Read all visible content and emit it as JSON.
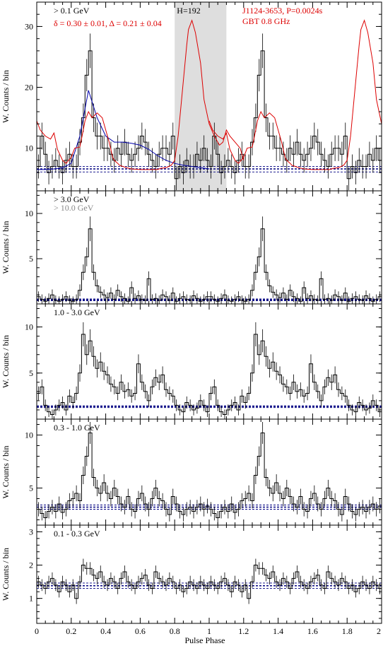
{
  "chart_data": [
    {
      "type": "line",
      "panel_label": "> 0.1 GeV",
      "fit_label": "δ = 0.30 ± 0.01, Δ = 0.21 ± 0.04",
      "h_label": "H=192",
      "radio_label": "J1124-3653, P=0.0024s",
      "radio_freq": "GBT 0.8 GHz",
      "ylabel": "W. Counts / bin",
      "xlim": [
        0,
        2
      ],
      "ylim": [
        3,
        34
      ],
      "yticks": [
        10,
        20,
        30
      ],
      "baseline": [
        6.1,
        6.6,
        7.0
      ],
      "shade": [
        0.8,
        1.1
      ],
      "series": [
        {
          "x": [
            0.0,
            0.02,
            0.04,
            0.06,
            0.08,
            0.1,
            0.12,
            0.14,
            0.16,
            0.18,
            0.2,
            0.22,
            0.24,
            0.26,
            0.28,
            0.3,
            0.32,
            0.34,
            0.36,
            0.38,
            0.4,
            0.42,
            0.44,
            0.46,
            0.48,
            0.5,
            0.52,
            0.54,
            0.56,
            0.58,
            0.6,
            0.62,
            0.64,
            0.66,
            0.68,
            0.7,
            0.72,
            0.74,
            0.76,
            0.78,
            0.8,
            0.82,
            0.84,
            0.86,
            0.88,
            0.9,
            0.92,
            0.94,
            0.96,
            0.98
          ],
          "values": [
            7,
            12,
            9,
            6,
            7,
            8,
            7,
            6,
            8,
            9,
            7,
            7,
            11,
            15,
            22,
            26,
            15,
            12,
            12,
            10,
            10,
            9,
            8,
            10,
            9,
            11,
            9,
            8,
            9,
            10,
            12,
            11,
            9,
            8,
            7,
            9,
            10,
            10,
            9,
            12,
            5,
            7,
            6,
            8,
            7,
            7,
            9,
            8,
            10,
            8
          ]
        },
        {
          "x": [
            0.0,
            0.05,
            0.1,
            0.15,
            0.2,
            0.25,
            0.3,
            0.35,
            0.4,
            0.45,
            0.5,
            0.55,
            0.6,
            0.65,
            0.7,
            0.75,
            0.8,
            0.85,
            0.9,
            0.95,
            1.0
          ],
          "values": [
            6.5,
            6.5,
            6.6,
            6.8,
            7.5,
            12,
            19.5,
            15,
            12,
            11,
            11,
            10.8,
            10.5,
            9.8,
            8.8,
            8.0,
            7.5,
            7.2,
            7.0,
            6.8,
            6.6
          ]
        },
        {
          "x": [
            0.0,
            0.02,
            0.05,
            0.08,
            0.1,
            0.12,
            0.15,
            0.17,
            0.2,
            0.22,
            0.25,
            0.27,
            0.28,
            0.3,
            0.32,
            0.35,
            0.38,
            0.4,
            0.42,
            0.44,
            0.45,
            0.47,
            0.48,
            0.5,
            0.52,
            0.55,
            0.6,
            0.65,
            0.7,
            0.72,
            0.75,
            0.78,
            0.8,
            0.82,
            0.85,
            0.87,
            0.88,
            0.9,
            0.92,
            0.95,
            0.97,
            1.0,
            1.03,
            1.06,
            1.08,
            1.1,
            1.12,
            1.15,
            1.18,
            1.2
          ],
          "values": [
            14.5,
            13,
            12,
            11.5,
            12.5,
            9.8,
            8,
            7.5,
            8.5,
            10,
            10.2,
            13,
            14.5,
            16,
            15,
            15.8,
            15,
            13,
            11,
            8.5,
            8,
            7.5,
            7.2,
            7,
            6.8,
            6.6,
            6.5,
            6.5,
            6.5,
            6.7,
            6.8,
            7.2,
            8,
            12,
            21,
            27,
            29.5,
            31,
            29,
            24,
            18,
            14,
            12,
            10.5,
            11,
            13,
            12,
            11,
            10,
            8
          ]
        }
      ]
    },
    {
      "type": "line",
      "panel_label": "> 3.0 GeV",
      "panel_label_2": "> 10.0 GeV",
      "ylabel": "W. Counts / bin",
      "xlim": [
        0,
        2
      ],
      "ylim": [
        0,
        12.5
      ],
      "yticks": [
        5,
        10
      ],
      "baseline": [
        0.35,
        0.45,
        0.55
      ],
      "series": [
        {
          "x": [
            0.0,
            0.02,
            0.04,
            0.06,
            0.08,
            0.1,
            0.12,
            0.14,
            0.16,
            0.18,
            0.2,
            0.22,
            0.24,
            0.26,
            0.28,
            0.3,
            0.32,
            0.34,
            0.36,
            0.38,
            0.4,
            0.42,
            0.44,
            0.46,
            0.48,
            0.5,
            0.52,
            0.54,
            0.56,
            0.58,
            0.6,
            0.62,
            0.64,
            0.66,
            0.68,
            0.7,
            0.72,
            0.74,
            0.76,
            0.78,
            0.8,
            0.82,
            0.84,
            0.86,
            0.88,
            0.9,
            0.92,
            0.94,
            0.96,
            0.98
          ],
          "values": [
            0.8,
            0.5,
            0.3,
            0.6,
            1.0,
            0.4,
            0.3,
            0.5,
            0.8,
            0.4,
            0.3,
            0.5,
            1.5,
            3.5,
            5.2,
            8.3,
            3.5,
            2.0,
            1.3,
            1.0,
            0.7,
            1.2,
            0.5,
            1.5,
            0.8,
            0.6,
            0.3,
            1.8,
            0.6,
            0.9,
            0.5,
            0.4,
            2.8,
            0.5,
            0.6,
            0.4,
            1.0,
            0.8,
            0.4,
            1.2,
            0.3,
            0.6,
            0.8,
            0.5,
            0.4,
            0.9,
            0.6,
            0.3,
            0.5,
            0.8
          ]
        }
      ]
    },
    {
      "type": "line",
      "panel_label": "1.0 - 3.0 GeV",
      "ylabel": "W. Counts / bin",
      "xlim": [
        0,
        2
      ],
      "ylim": [
        0,
        12.5
      ],
      "yticks": [
        5,
        10
      ],
      "baseline": [
        1.25,
        1.35,
        1.45
      ],
      "series": [
        {
          "x": [
            0.0,
            0.02,
            0.04,
            0.06,
            0.08,
            0.1,
            0.12,
            0.14,
            0.16,
            0.18,
            0.2,
            0.22,
            0.24,
            0.26,
            0.28,
            0.3,
            0.32,
            0.34,
            0.36,
            0.38,
            0.4,
            0.42,
            0.44,
            0.46,
            0.48,
            0.5,
            0.52,
            0.54,
            0.56,
            0.58,
            0.6,
            0.62,
            0.64,
            0.66,
            0.68,
            0.7,
            0.72,
            0.74,
            0.76,
            0.78,
            0.8,
            0.82,
            0.84,
            0.86,
            0.88,
            0.9,
            0.92,
            0.94,
            0.96,
            0.98
          ],
          "values": [
            2.8,
            3.5,
            1.5,
            0.8,
            0.5,
            1.0,
            1.5,
            1.8,
            1.0,
            2.5,
            1.8,
            2.8,
            5.0,
            9.2,
            7.0,
            8.5,
            6.8,
            5.5,
            6.2,
            5.2,
            4.8,
            3.8,
            3.5,
            2.8,
            4.0,
            3.0,
            3.2,
            2.5,
            2.8,
            6.0,
            4.0,
            3.0,
            2.0,
            3.5,
            4.5,
            4.0,
            4.8,
            3.2,
            2.8,
            2.5,
            1.5,
            1.0,
            0.8,
            1.8,
            1.5,
            1.0,
            1.2,
            2.0,
            1.5,
            0.8
          ]
        }
      ]
    },
    {
      "type": "line",
      "panel_label": "0.3 - 1.0 GeV",
      "ylabel": "W. Counts / bin",
      "xlim": [
        0,
        2
      ],
      "ylim": [
        1.5,
        11.5
      ],
      "yticks": [
        5,
        10
      ],
      "baseline": [
        3.0,
        3.2,
        3.4
      ],
      "series": [
        {
          "x": [
            0.0,
            0.02,
            0.04,
            0.06,
            0.08,
            0.1,
            0.12,
            0.14,
            0.16,
            0.18,
            0.2,
            0.22,
            0.24,
            0.26,
            0.28,
            0.3,
            0.32,
            0.34,
            0.36,
            0.38,
            0.4,
            0.42,
            0.44,
            0.46,
            0.48,
            0.5,
            0.52,
            0.54,
            0.56,
            0.58,
            0.6,
            0.62,
            0.64,
            0.66,
            0.68,
            0.7,
            0.72,
            0.74,
            0.76,
            0.78,
            0.8,
            0.82,
            0.84,
            0.86,
            0.88,
            0.9,
            0.92,
            0.94,
            0.96,
            0.98
          ],
          "values": [
            3.0,
            2.6,
            2.2,
            2.8,
            3.2,
            2.8,
            3.5,
            2.7,
            3.0,
            3.8,
            4.0,
            4.5,
            3.8,
            6.2,
            8.0,
            10.2,
            6.0,
            5.0,
            4.5,
            5.5,
            4.5,
            4.0,
            5.0,
            4.2,
            3.5,
            3.2,
            4.2,
            3.0,
            2.8,
            4.0,
            4.5,
            3.5,
            3.0,
            4.0,
            5.0,
            4.0,
            3.8,
            3.0,
            2.5,
            4.2,
            3.5,
            2.8,
            2.5,
            3.0,
            3.2,
            2.8,
            3.2,
            3.5,
            3.0,
            3.3
          ]
        }
      ]
    },
    {
      "type": "line",
      "panel_label": "0.1 - 0.3 GeV",
      "ylabel": "W. Counts / bin",
      "xlim": [
        0,
        2
      ],
      "ylim": [
        0.25,
        3.2
      ],
      "yticks": [
        1,
        2,
        3
      ],
      "baseline": [
        1.3,
        1.38,
        1.46
      ],
      "series": [
        {
          "x": [
            0.0,
            0.02,
            0.04,
            0.06,
            0.08,
            0.1,
            0.12,
            0.14,
            0.16,
            0.18,
            0.2,
            0.22,
            0.24,
            0.26,
            0.28,
            0.3,
            0.32,
            0.34,
            0.36,
            0.38,
            0.4,
            0.42,
            0.44,
            0.46,
            0.48,
            0.5,
            0.52,
            0.54,
            0.56,
            0.58,
            0.6,
            0.62,
            0.64,
            0.66,
            0.68,
            0.7,
            0.72,
            0.74,
            0.76,
            0.78,
            0.8,
            0.82,
            0.84,
            0.86,
            0.88,
            0.9,
            0.92,
            0.94,
            0.96,
            0.98
          ],
          "values": [
            1.5,
            1.4,
            1.3,
            1.5,
            1.6,
            1.4,
            1.2,
            1.5,
            1.4,
            1.2,
            1.4,
            1.0,
            1.5,
            2.0,
            1.9,
            1.9,
            1.7,
            1.6,
            1.8,
            1.5,
            1.4,
            1.6,
            1.5,
            1.3,
            1.6,
            1.8,
            1.5,
            1.4,
            1.3,
            1.5,
            1.6,
            1.7,
            1.4,
            1.3,
            1.8,
            1.6,
            1.5,
            1.4,
            1.6,
            1.5,
            1.3,
            1.4,
            1.2,
            1.3,
            1.5,
            1.4,
            1.3,
            1.5,
            1.4,
            1.3
          ]
        }
      ]
    }
  ],
  "x_axis": {
    "label": "Pulse Phase",
    "ticks": [
      0,
      0.2,
      0.4,
      0.6,
      0.8,
      1,
      1.2,
      1.4,
      1.6,
      1.8,
      2
    ]
  },
  "colors": {
    "histogram": "#000000",
    "fit": "#0000aa",
    "radio": "#dd0000",
    "baseline": "#000080",
    "shade": "#dedede",
    "label_gray": "#888888"
  }
}
